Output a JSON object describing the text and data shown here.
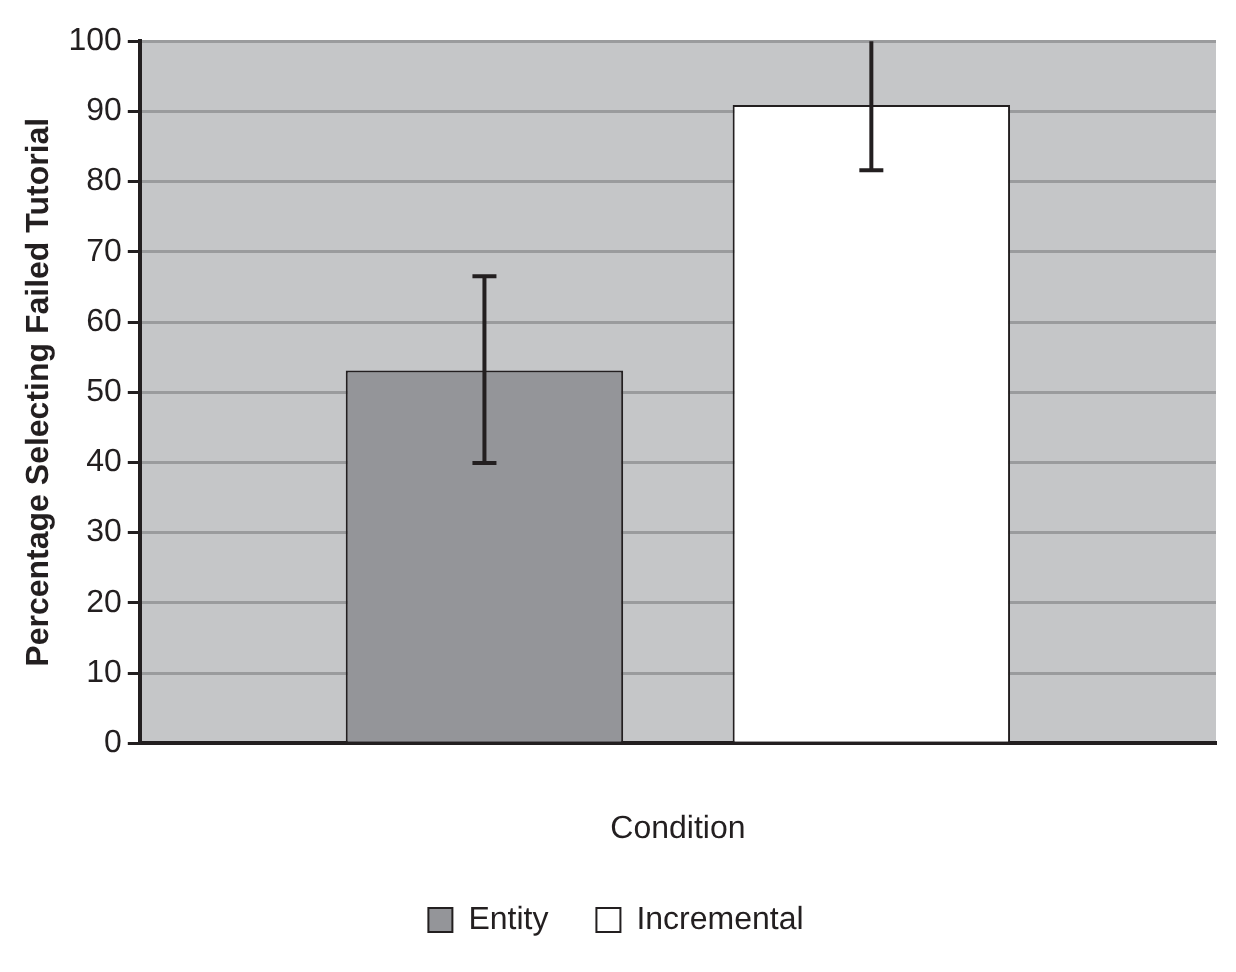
{
  "chart_data": {
    "type": "bar",
    "xlabel": "Condition",
    "ylabel": "Percentage Selecting Failed Tutorial",
    "categories": [
      null
    ],
    "series": [
      {
        "name": "Entity",
        "color": "#949599",
        "values": [
          53.1
        ],
        "errors": [
          [
            39.9,
            66.5
          ]
        ]
      },
      {
        "name": "Incremental",
        "color": "#ffffff",
        "values": [
          90.9
        ],
        "errors": [
          [
            81.6,
            100
          ]
        ]
      }
    ],
    "ylim": [
      0,
      100
    ],
    "yticks": [
      0,
      10,
      20,
      30,
      40,
      50,
      60,
      70,
      80,
      90,
      100
    ],
    "grid": "y",
    "legend": "bottom"
  }
}
